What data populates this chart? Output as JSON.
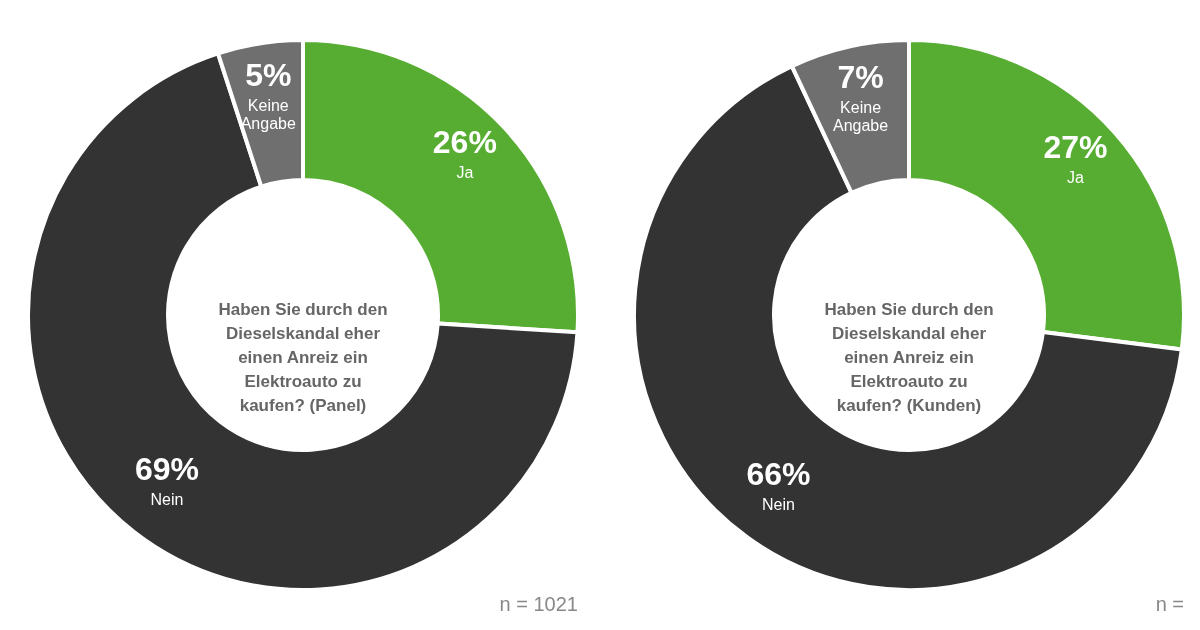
{
  "chart_data": [
    {
      "type": "donut",
      "title": "Haben Sie durch den Dieselskandal eher einen Anreiz ein Elektroauto zu kaufen? (Panel)",
      "categories": [
        "Ja",
        "Nein",
        "Keine Angabe"
      ],
      "values": [
        26,
        69,
        5
      ],
      "colors": [
        "#56ad31",
        "#333333",
        "#706f6f"
      ],
      "value_labels": [
        "26%",
        "69%",
        "5%"
      ],
      "legend": false,
      "annotations": [
        "n = 1021"
      ]
    },
    {
      "type": "donut",
      "title": "Haben Sie durch den Dieselskandal eher einen Anreiz ein Elektroauto zu kaufen? (Kunden)",
      "categories": [
        "Ja",
        "Nein",
        "Keine Angabe"
      ],
      "values": [
        27,
        66,
        7
      ],
      "colors": [
        "#56ad31",
        "#333333",
        "#706f6f"
      ],
      "value_labels": [
        "27%",
        "66%",
        "7%"
      ],
      "legend": false,
      "annotations": [
        "n ="
      ]
    }
  ]
}
